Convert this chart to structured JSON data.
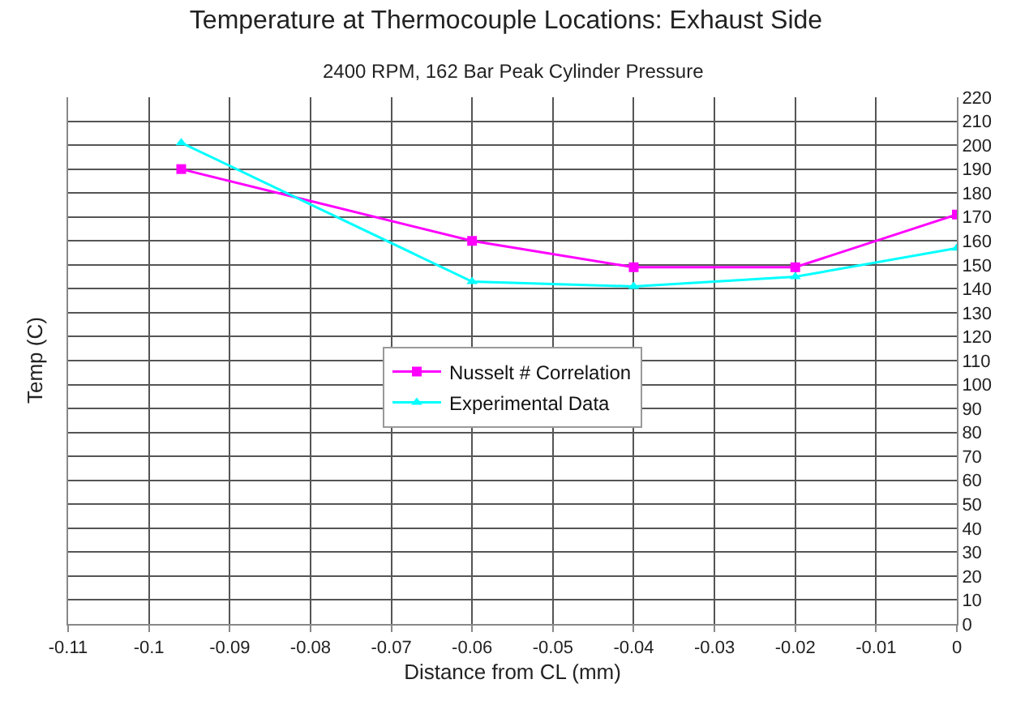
{
  "chart_data": {
    "type": "line",
    "title": "Temperature at Thermocouple Locations: Exhaust Side",
    "subtitle": "2400 RPM, 162 Bar Peak Cylinder Pressure",
    "xlabel": "Distance from CL (mm)",
    "ylabel": "Temp (C)",
    "x": [
      -0.096,
      -0.06,
      -0.04,
      -0.02,
      0
    ],
    "series": [
      {
        "name": "Nusselt # Correlation",
        "color": "#ff00ff",
        "marker": "square",
        "values": [
          190,
          160,
          149,
          149,
          171
        ]
      },
      {
        "name": "Experimental Data",
        "color": "#00ffff",
        "marker": "triangle",
        "values": [
          201,
          143,
          141,
          145,
          157
        ]
      }
    ],
    "xlim": [
      -0.11,
      0
    ],
    "xticks": [
      -0.11,
      -0.1,
      -0.09,
      -0.08,
      -0.07,
      -0.06,
      -0.05,
      -0.04,
      -0.03,
      -0.02,
      -0.01,
      0
    ],
    "ylim": [
      0,
      220
    ],
    "yticks": [
      0,
      10,
      20,
      30,
      40,
      50,
      60,
      70,
      80,
      90,
      100,
      110,
      120,
      130,
      140,
      150,
      160,
      170,
      180,
      190,
      200,
      210,
      220
    ],
    "grid": true,
    "legend": "center",
    "line_style": "solid"
  }
}
